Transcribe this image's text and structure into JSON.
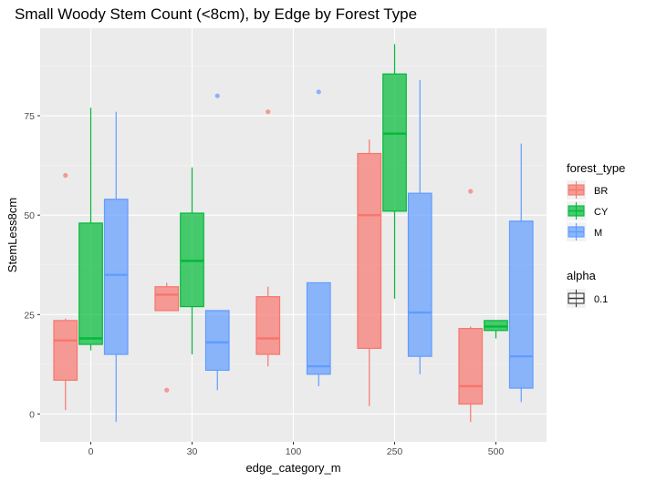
{
  "chart_data": {
    "type": "boxplot",
    "title": "Small Woody Stem Count (<8cm), by Edge by Forest Type",
    "xlabel": "edge_category_m",
    "ylabel": "StemLess8cm",
    "categories": [
      "0",
      "30",
      "100",
      "250",
      "500"
    ],
    "ylim": [
      -7,
      97
    ],
    "yticks": [
      0,
      25,
      50,
      75
    ],
    "grid": true,
    "legend_position": "right",
    "legend": {
      "forest_type": {
        "title": "forest_type",
        "entries": [
          "BR",
          "CY",
          "M"
        ]
      },
      "alpha": {
        "title": "alpha",
        "entries": [
          "0.1"
        ]
      }
    },
    "series": [
      {
        "name": "BR",
        "color": "#F8766D",
        "boxes": [
          {
            "category": "0",
            "min": 1,
            "q1": 8.5,
            "median": 18.5,
            "q3": 23.5,
            "max": 24,
            "outliers": [
              60
            ]
          },
          {
            "category": "30",
            "min": 26,
            "q1": 26,
            "median": 30,
            "q3": 32,
            "max": 33,
            "outliers": [
              6
            ]
          },
          {
            "category": "100",
            "min": 12,
            "q1": 15,
            "median": 19,
            "q3": 29.5,
            "max": 32,
            "outliers": [
              76
            ]
          },
          {
            "category": "250",
            "min": 2,
            "q1": 16.5,
            "median": 50,
            "q3": 65.5,
            "max": 69,
            "outliers": []
          },
          {
            "category": "500",
            "min": -2,
            "q1": 2.5,
            "median": 7,
            "q3": 21.5,
            "max": 22,
            "outliers": [
              56
            ]
          }
        ]
      },
      {
        "name": "CY",
        "color": "#00BA38",
        "boxes": [
          {
            "category": "0",
            "min": 16,
            "q1": 17.5,
            "median": 19,
            "q3": 48,
            "max": 77,
            "outliers": []
          },
          {
            "category": "30",
            "min": 15,
            "q1": 27,
            "median": 38.5,
            "q3": 50.5,
            "max": 62,
            "outliers": []
          },
          {
            "category": "250",
            "min": 29,
            "q1": 51,
            "median": 70.5,
            "q3": 85.5,
            "max": 93,
            "outliers": []
          },
          {
            "category": "500",
            "min": 19,
            "q1": 21,
            "median": 22,
            "q3": 23.5,
            "max": 23.5,
            "outliers": []
          }
        ]
      },
      {
        "name": "M",
        "color": "#619CFF",
        "boxes": [
          {
            "category": "0",
            "min": -2,
            "q1": 15,
            "median": 35,
            "q3": 54,
            "max": 76,
            "outliers": []
          },
          {
            "category": "30",
            "min": 6,
            "q1": 11,
            "median": 18,
            "q3": 26,
            "max": 26,
            "outliers": [
              80
            ]
          },
          {
            "category": "100",
            "min": 7,
            "q1": 10,
            "median": 12,
            "q3": 33,
            "max": 33,
            "outliers": [
              81
            ]
          },
          {
            "category": "250",
            "min": 10,
            "q1": 14.5,
            "median": 25.5,
            "q3": 55.5,
            "max": 84,
            "outliers": []
          },
          {
            "category": "500",
            "min": 3,
            "q1": 6.5,
            "median": 14.5,
            "q3": 48.5,
            "max": 68,
            "outliers": []
          }
        ]
      }
    ]
  }
}
